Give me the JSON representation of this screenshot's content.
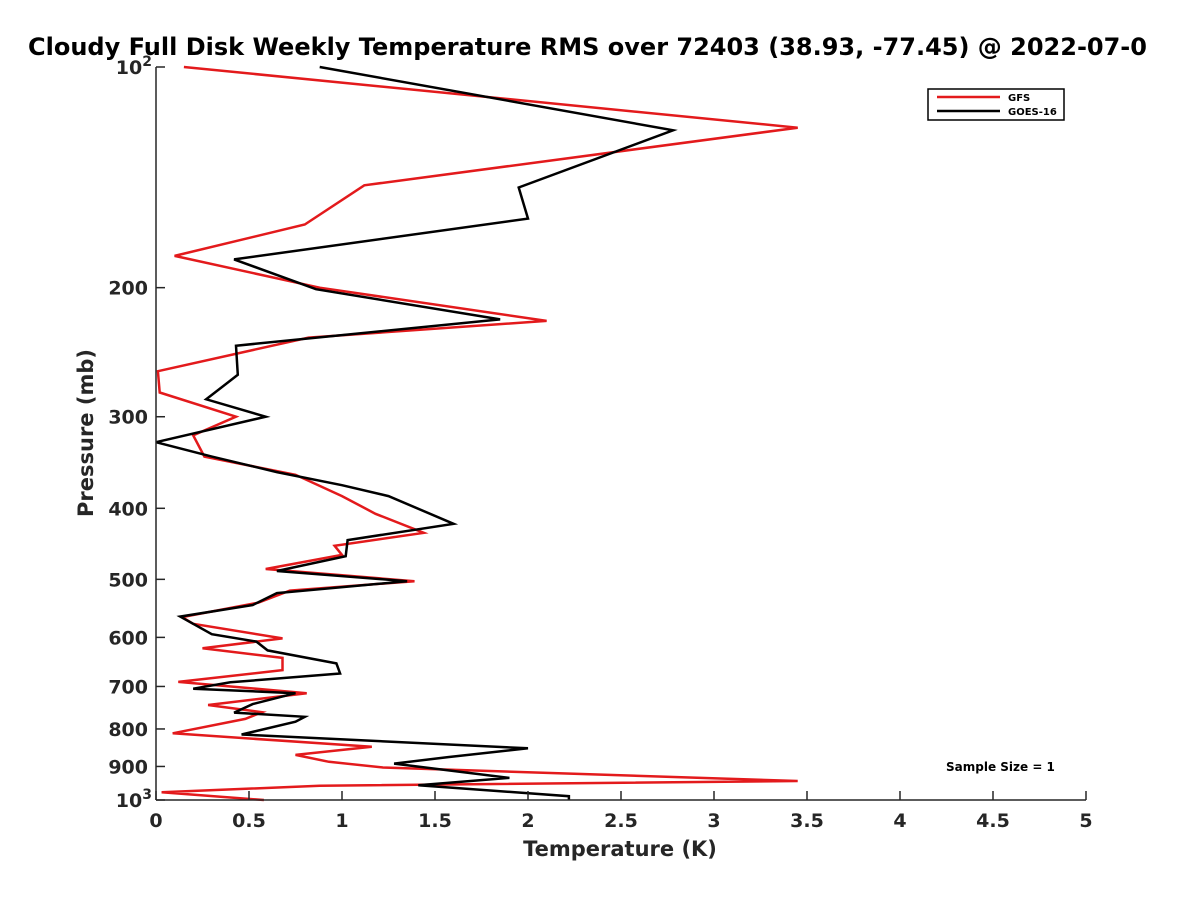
{
  "chart_data": {
    "type": "line",
    "title": "Cloudy Full Disk Weekly Temperature RMS over 72403 (38.93, -77.45) @ 2022-07-0",
    "xlabel": "Temperature (K)",
    "ylabel": "Pressure (mb)",
    "xlim": [
      0,
      5
    ],
    "ylim": [
      100,
      1000
    ],
    "y_scale": "log",
    "y_reversed": true,
    "x_ticks": [
      0,
      0.5,
      1,
      1.5,
      2,
      2.5,
      3,
      3.5,
      4,
      4.5,
      5
    ],
    "x_tick_labels": [
      "0",
      "0.5",
      "1",
      "1.5",
      "2",
      "2.5",
      "3",
      "3.5",
      "4",
      "4.5",
      "5"
    ],
    "y_ticks": [
      {
        "value": 100,
        "label": "10",
        "exp": "2"
      },
      {
        "value": 200,
        "label": "200"
      },
      {
        "value": 300,
        "label": "300"
      },
      {
        "value": 400,
        "label": "400"
      },
      {
        "value": 500,
        "label": "500"
      },
      {
        "value": 600,
        "label": "600"
      },
      {
        "value": 700,
        "label": "700"
      },
      {
        "value": 800,
        "label": "800"
      },
      {
        "value": 900,
        "label": "900"
      },
      {
        "value": 1000,
        "label": "10",
        "exp": "3"
      }
    ],
    "grid": false,
    "legend_position": "top-right",
    "annotation": "Sample Size = 1",
    "series": [
      {
        "name": "GFS",
        "color": "#e31a1c",
        "points": [
          [
            0.15,
            100
          ],
          [
            3.45,
            121
          ],
          [
            1.12,
            145
          ],
          [
            0.8,
            164
          ],
          [
            0.1,
            181
          ],
          [
            0.88,
            200
          ],
          [
            2.1,
            222
          ],
          [
            0.82,
            234
          ],
          [
            0.01,
            260
          ],
          [
            0.02,
            278
          ],
          [
            0.43,
            300
          ],
          [
            0.2,
            318
          ],
          [
            0.26,
            340
          ],
          [
            0.75,
            360
          ],
          [
            1.0,
            385
          ],
          [
            1.18,
            407
          ],
          [
            1.44,
            432
          ],
          [
            0.96,
            450
          ],
          [
            1.0,
            463
          ],
          [
            0.59,
            484
          ],
          [
            1.39,
            503
          ],
          [
            0.72,
            518
          ],
          [
            0.55,
            538
          ],
          [
            0.14,
            563
          ],
          [
            0.2,
            575
          ],
          [
            0.68,
            602
          ],
          [
            0.25,
            621
          ],
          [
            0.68,
            640
          ],
          [
            0.68,
            665
          ],
          [
            0.12,
            690
          ],
          [
            0.81,
            715
          ],
          [
            0.28,
            742
          ],
          [
            0.57,
            759
          ],
          [
            0.48,
            775
          ],
          [
            0.09,
            811
          ],
          [
            1.16,
            846
          ],
          [
            0.75,
            868
          ],
          [
            0.93,
            887
          ],
          [
            1.22,
            903
          ],
          [
            3.45,
            942
          ],
          [
            0.88,
            956
          ],
          [
            0.03,
            976
          ],
          [
            0.58,
            1000
          ]
        ]
      },
      {
        "name": "GOES-16",
        "color": "#000000",
        "points": [
          [
            0.88,
            100
          ],
          [
            2.78,
            122
          ],
          [
            1.95,
            146
          ],
          [
            2.0,
            161
          ],
          [
            0.42,
            183
          ],
          [
            0.86,
            201
          ],
          [
            1.85,
            221
          ],
          [
            0.43,
            240
          ],
          [
            0.44,
            263
          ],
          [
            0.27,
            284
          ],
          [
            0.59,
            300
          ],
          [
            0.0,
            325
          ],
          [
            0.3,
            340
          ],
          [
            0.65,
            357
          ],
          [
            1.0,
            372
          ],
          [
            1.25,
            385
          ],
          [
            1.6,
            420
          ],
          [
            1.03,
            442
          ],
          [
            1.02,
            465
          ],
          [
            0.65,
            487
          ],
          [
            1.35,
            503
          ],
          [
            0.65,
            522
          ],
          [
            0.52,
            542
          ],
          [
            0.13,
            562
          ],
          [
            0.3,
            594
          ],
          [
            0.54,
            608
          ],
          [
            0.6,
            625
          ],
          [
            0.97,
            651
          ],
          [
            0.99,
            672
          ],
          [
            0.4,
            691
          ],
          [
            0.2,
            705
          ],
          [
            0.75,
            715
          ],
          [
            0.52,
            740
          ],
          [
            0.42,
            760
          ],
          [
            0.8,
            770
          ],
          [
            0.75,
            782
          ],
          [
            0.46,
            814
          ],
          [
            2.0,
            850
          ],
          [
            1.57,
            874
          ],
          [
            1.28,
            892
          ],
          [
            1.9,
            933
          ],
          [
            1.41,
            955
          ],
          [
            2.22,
            988
          ],
          [
            2.22,
            1000
          ]
        ]
      }
    ]
  }
}
